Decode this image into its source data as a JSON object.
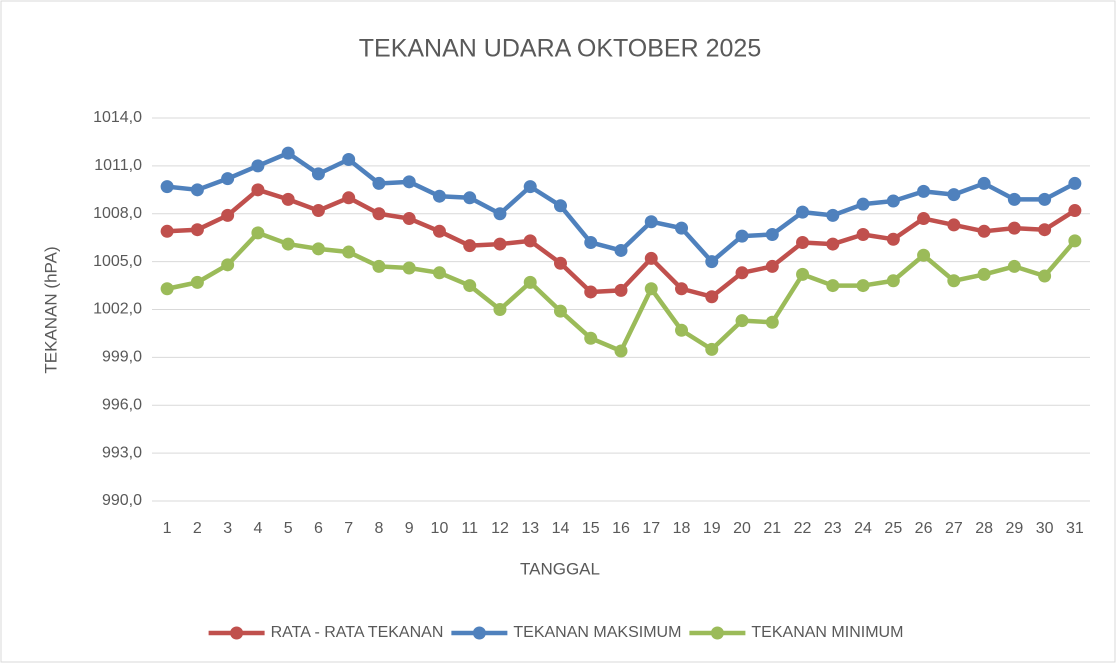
{
  "chart_data": {
    "type": "line",
    "title": "TEKANAN UDARA OKTOBER 2025",
    "x_label": "TANGGAL",
    "y_label": "TEKANAN (hPA)",
    "categories": [
      "1",
      "2",
      "3",
      "4",
      "5",
      "6",
      "7",
      "8",
      "9",
      "10",
      "11",
      "12",
      "13",
      "14",
      "15",
      "16",
      "17",
      "18",
      "19",
      "20",
      "21",
      "22",
      "23",
      "24",
      "25",
      "26",
      "27",
      "28",
      "29",
      "30",
      "31"
    ],
    "series": [
      {
        "name": "RATA - RATA TEKANAN",
        "color": "#c0504d",
        "values": [
          1006.9,
          1007.0,
          1007.9,
          1009.5,
          1008.9,
          1008.2,
          1009.0,
          1008.0,
          1007.7,
          1006.9,
          1006.0,
          1006.1,
          1006.3,
          1004.9,
          1003.1,
          1003.2,
          1005.2,
          1003.3,
          1002.8,
          1004.3,
          1004.7,
          1006.2,
          1006.1,
          1006.7,
          1006.4,
          1007.7,
          1007.3,
          1006.9,
          1007.1,
          1007.0,
          1008.2
        ]
      },
      {
        "name": "TEKANAN MAKSIMUM",
        "color": "#4f81bd",
        "values": [
          1009.7,
          1009.5,
          1010.2,
          1011.0,
          1011.8,
          1010.5,
          1011.4,
          1009.9,
          1010.0,
          1009.1,
          1009.0,
          1008.0,
          1009.7,
          1008.5,
          1006.2,
          1005.7,
          1007.5,
          1007.1,
          1005.0,
          1006.6,
          1006.7,
          1008.1,
          1007.9,
          1008.6,
          1008.8,
          1009.4,
          1009.2,
          1009.9,
          1008.9,
          1008.9,
          1009.9
        ]
      },
      {
        "name": "TEKANAN MINIMUM",
        "color": "#9bbb59",
        "values": [
          1003.3,
          1003.7,
          1004.8,
          1006.8,
          1006.1,
          1005.8,
          1005.6,
          1004.7,
          1004.6,
          1004.3,
          1003.5,
          1002.0,
          1003.7,
          1001.9,
          1000.2,
          999.4,
          1003.3,
          1000.7,
          999.5,
          1001.3,
          1001.2,
          1004.2,
          1003.5,
          1003.5,
          1003.8,
          1005.4,
          1003.8,
          1004.2,
          1004.7,
          1004.1,
          1006.3
        ]
      }
    ],
    "ylim": [
      990,
      1014
    ],
    "yticks": [
      {
        "value": 990,
        "label": "990,0"
      },
      {
        "value": 993,
        "label": "993,0"
      },
      {
        "value": 996,
        "label": "996,0"
      },
      {
        "value": 999,
        "label": "999,0"
      },
      {
        "value": 1002,
        "label": "1002,0"
      },
      {
        "value": 1005,
        "label": "1005,0"
      },
      {
        "value": 1008,
        "label": "1008,0"
      },
      {
        "value": 1011,
        "label": "1011,0"
      },
      {
        "value": 1014,
        "label": "1014,0"
      }
    ],
    "grid": true,
    "legend": "bottom"
  }
}
